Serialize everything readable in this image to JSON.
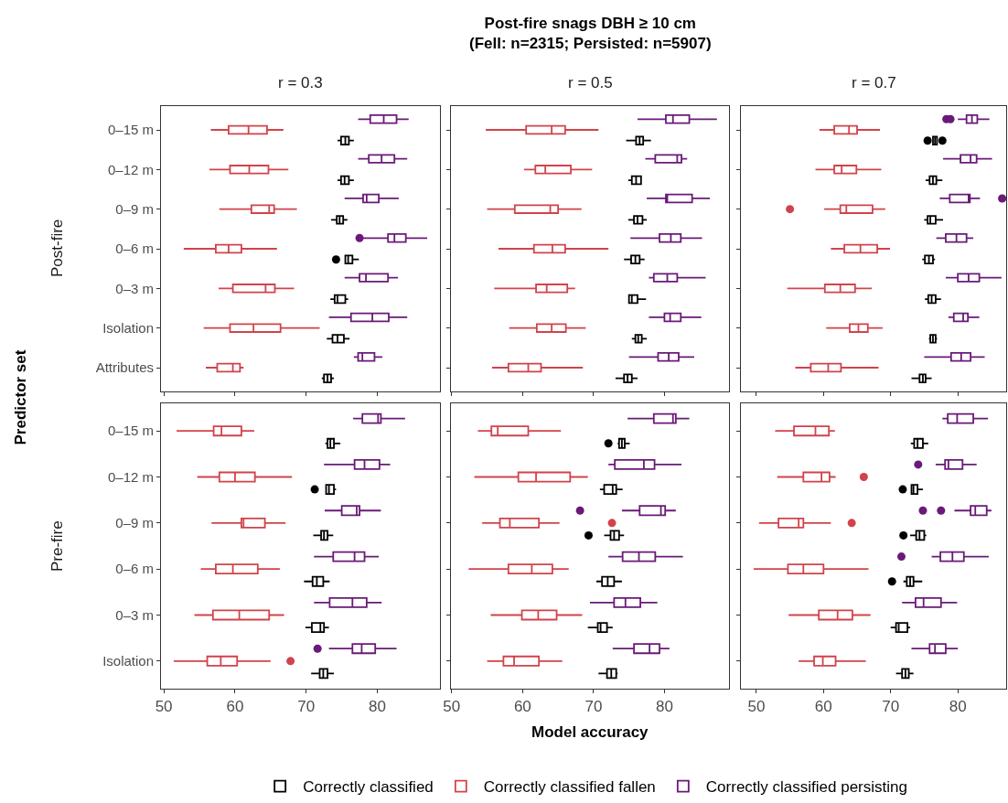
{
  "chart_data": [
    {
      "type": "box",
      "orientation": "horizontal",
      "subtitle": "r = 0.3",
      "ylabel": "Post-fire",
      "annotations": [
        "Predictor set"
      ],
      "legend": "bottom",
      "tick_labels": "y",
      "xlim": [
        49.6,
        88.8
      ],
      "xticks": [
        50,
        60,
        70,
        80
      ],
      "categories": [
        "0–15 m",
        "0–12 m",
        "0–9 m",
        "0–6 m",
        "0–3 m",
        "Isolation",
        "Attributes"
      ],
      "series": [
        {
          "name": "Correctly classified",
          "color": "#000000",
          "boxes": [
            {
              "low": 74.4,
              "q1": 74.9,
              "median": 75.5,
              "q3": 76.0,
              "high": 76.7
            },
            {
              "low": 74.4,
              "q1": 74.9,
              "median": 75.4,
              "q3": 76.0,
              "high": 76.7
            },
            {
              "low": 73.5,
              "q1": 74.3,
              "median": 74.7,
              "q3": 75.2,
              "high": 75.8
            },
            {
              "low": 75.5,
              "q1": 75.5,
              "median": 75.9,
              "q3": 76.5,
              "high": 77.4,
              "outliers": [
                74.2
              ]
            },
            {
              "low": 73.4,
              "q1": 74.0,
              "median": 74.4,
              "q3": 75.5,
              "high": 75.9
            },
            {
              "low": 72.9,
              "q1": 73.7,
              "median": 74.4,
              "q3": 75.3,
              "high": 76.1
            },
            {
              "low": 72.2,
              "q1": 72.5,
              "median": 73.0,
              "q3": 73.5,
              "high": 73.9
            }
          ]
        },
        {
          "name": "Correctly classified fallen",
          "color": "#d1434b",
          "boxes": [
            {
              "low": 56.6,
              "q1": 59.1,
              "median": 61.9,
              "q3": 64.5,
              "high": 66.8
            },
            {
              "low": 56.4,
              "q1": 59.3,
              "median": 62.0,
              "q3": 64.7,
              "high": 67.5
            },
            {
              "low": 57.8,
              "q1": 62.3,
              "median": 64.8,
              "q3": 65.5,
              "high": 68.7
            },
            {
              "low": 52.8,
              "q1": 57.3,
              "median": 59.1,
              "q3": 60.9,
              "high": 65.9
            },
            {
              "low": 57.7,
              "q1": 59.7,
              "median": 64.3,
              "q3": 65.6,
              "high": 68.3
            },
            {
              "low": 55.6,
              "q1": 59.3,
              "median": 62.6,
              "q3": 66.4,
              "high": 71.9
            },
            {
              "low": 55.9,
              "q1": 57.5,
              "median": 59.7,
              "q3": 60.7,
              "high": 61.2
            }
          ]
        },
        {
          "name": "Correctly classified persisting",
          "color": "#6a1a78",
          "boxes": [
            {
              "low": 77.3,
              "q1": 79.0,
              "median": 80.9,
              "q3": 82.7,
              "high": 84.4
            },
            {
              "low": 77.3,
              "q1": 78.8,
              "median": 80.6,
              "q3": 82.4,
              "high": 84.2
            },
            {
              "low": 75.4,
              "q1": 78.0,
              "median": 78.5,
              "q3": 80.2,
              "high": 83.0
            },
            {
              "low": 78.0,
              "q1": 81.5,
              "median": 82.4,
              "q3": 84.0,
              "high": 87.0,
              "outliers": [
                77.5
              ]
            },
            {
              "low": 75.4,
              "q1": 77.5,
              "median": 78.4,
              "q3": 81.5,
              "high": 82.9
            },
            {
              "low": 73.2,
              "q1": 76.3,
              "median": 79.3,
              "q3": 81.6,
              "high": 84.2
            },
            {
              "low": 76.7,
              "q1": 77.3,
              "median": 77.9,
              "q3": 79.6,
              "high": 80.7
            }
          ]
        }
      ]
    },
    {
      "type": "box",
      "orientation": "horizontal",
      "title": "Post-fire snags DBH ≥ 10 cm\n(Fell: n=2315; Persisted: n=5907)",
      "subtitle": "r = 0.5",
      "tick_labels": false,
      "xlim": [
        49.9,
        89.1
      ],
      "xticks": [
        50,
        60,
        70,
        80
      ],
      "categories": [
        null,
        null,
        null,
        null,
        null,
        null,
        null
      ],
      "series": [
        {
          "color": "#000000",
          "boxes": [
            {
              "low": 74.6,
              "q1": 76.0,
              "median": 76.5,
              "q3": 77.0,
              "high": 78.1
            },
            {
              "low": 74.9,
              "q1": 75.4,
              "median": 76.0,
              "q3": 76.7,
              "high": 76.7
            },
            {
              "low": 74.9,
              "q1": 75.7,
              "median": 76.2,
              "q3": 76.9,
              "high": 77.5
            },
            {
              "low": 74.3,
              "q1": 75.3,
              "median": 75.9,
              "q3": 76.5,
              "high": 77.2
            },
            {
              "low": 75.0,
              "q1": 75.0,
              "median": 75.4,
              "q3": 76.2,
              "high": 77.4
            },
            {
              "low": 75.4,
              "q1": 75.9,
              "median": 76.3,
              "q3": 76.8,
              "high": 77.5
            },
            {
              "low": 73.1,
              "q1": 74.3,
              "median": 74.8,
              "q3": 75.4,
              "high": 76.2
            }
          ]
        },
        {
          "color": "#d1434b",
          "boxes": [
            {
              "low": 54.8,
              "q1": 60.5,
              "median": 64.1,
              "q3": 66.0,
              "high": 70.7
            },
            {
              "low": 60.2,
              "q1": 61.8,
              "median": 63.2,
              "q3": 66.8,
              "high": 69.8
            },
            {
              "low": 55.0,
              "q1": 58.9,
              "median": 63.9,
              "q3": 65.0,
              "high": 68.3
            },
            {
              "low": 56.6,
              "q1": 61.6,
              "median": 64.2,
              "q3": 66.0,
              "high": 72.1
            },
            {
              "low": 56.0,
              "q1": 61.9,
              "median": 63.4,
              "q3": 66.3,
              "high": 67.4
            },
            {
              "low": 58.1,
              "q1": 62.0,
              "median": 64.1,
              "q3": 66.1,
              "high": 68.9
            },
            {
              "low": 55.7,
              "q1": 58.0,
              "median": 60.8,
              "q3": 62.6,
              "high": 68.5
            }
          ]
        },
        {
          "color": "#6a1a78",
          "boxes": [
            {
              "low": 76.2,
              "q1": 80.2,
              "median": 81.2,
              "q3": 83.5,
              "high": 87.4
            },
            {
              "low": 77.3,
              "q1": 78.7,
              "median": 81.8,
              "q3": 82.4,
              "high": 83.2
            },
            {
              "low": 77.5,
              "q1": 80.2,
              "median": 80.4,
              "q3": 83.9,
              "high": 86.4
            },
            {
              "low": 75.2,
              "q1": 79.3,
              "median": 80.9,
              "q3": 82.3,
              "high": 85.3
            },
            {
              "low": 77.8,
              "q1": 78.5,
              "median": 80.4,
              "q3": 81.8,
              "high": 85.8
            },
            {
              "low": 77.8,
              "q1": 80.0,
              "median": 80.8,
              "q3": 82.3,
              "high": 85.2
            },
            {
              "low": 75.0,
              "q1": 79.1,
              "median": 80.6,
              "q3": 82.0,
              "high": 84.2
            }
          ]
        }
      ]
    },
    {
      "type": "box",
      "orientation": "horizontal",
      "subtitle": "r = 0.7",
      "tick_labels": false,
      "xlim": [
        47.7,
        87.2
      ],
      "xticks": [
        50,
        60,
        70,
        80
      ],
      "categories": [
        null,
        null,
        null,
        null,
        null,
        null,
        null
      ],
      "series": [
        {
          "color": "#000000",
          "boxes": [
            {
              "low": 76.3,
              "q1": 76.3,
              "median": 76.6,
              "q3": 76.9,
              "high": 76.9,
              "outliers": [
                75.5,
                77.7
              ]
            },
            {
              "low": 75.2,
              "q1": 75.8,
              "median": 76.3,
              "q3": 76.8,
              "high": 77.7
            },
            {
              "low": 75.0,
              "q1": 75.5,
              "median": 75.9,
              "q3": 76.7,
              "high": 77.8
            },
            {
              "low": 74.7,
              "q1": 75.1,
              "median": 75.7,
              "q3": 76.3,
              "high": 76.6
            },
            {
              "low": 75.1,
              "q1": 75.6,
              "median": 76.1,
              "q3": 76.7,
              "high": 77.5
            },
            {
              "low": 75.7,
              "q1": 75.9,
              "median": 76.3,
              "q3": 76.7,
              "high": 76.9
            },
            {
              "low": 73.1,
              "q1": 74.3,
              "median": 74.8,
              "q3": 75.2,
              "high": 76.1
            }
          ]
        },
        {
          "color": "#d1434b",
          "boxes": [
            {
              "low": 59.4,
              "q1": 61.6,
              "median": 63.8,
              "q3": 65.0,
              "high": 68.4
            },
            {
              "low": 58.8,
              "q1": 61.6,
              "median": 62.7,
              "q3": 64.9,
              "high": 68.6
            },
            {
              "low": 60.1,
              "q1": 62.5,
              "median": 63.4,
              "q3": 67.3,
              "high": 69.2,
              "outliers": [
                55.0
              ]
            },
            {
              "low": 61.1,
              "q1": 63.1,
              "median": 65.5,
              "q3": 68.0,
              "high": 69.9
            },
            {
              "low": 54.6,
              "q1": 60.2,
              "median": 62.5,
              "q3": 64.7,
              "high": 67.2
            },
            {
              "low": 60.4,
              "q1": 63.9,
              "median": 65.2,
              "q3": 66.6,
              "high": 68.8
            },
            {
              "low": 55.8,
              "q1": 58.1,
              "median": 60.7,
              "q3": 62.6,
              "high": 68.2
            }
          ]
        },
        {
          "color": "#6a1a78",
          "boxes": [
            {
              "low": 80.0,
              "q1": 81.3,
              "median": 82.1,
              "q3": 82.9,
              "high": 84.7,
              "outliers": [
                78.3,
                78.9
              ]
            },
            {
              "low": 77.8,
              "q1": 80.4,
              "median": 81.9,
              "q3": 82.8,
              "high": 85.1
            },
            {
              "low": 77.3,
              "q1": 78.8,
              "median": 81.6,
              "q3": 81.8,
              "high": 83.3,
              "outliers": [
                86.6
              ]
            },
            {
              "low": 76.8,
              "q1": 78.2,
              "median": 79.8,
              "q3": 81.3,
              "high": 82.3
            },
            {
              "low": 78.2,
              "q1": 80.0,
              "median": 81.6,
              "q3": 83.2,
              "high": 86.5
            },
            {
              "low": 78.6,
              "q1": 79.4,
              "median": 80.8,
              "q3": 81.5,
              "high": 83.2
            },
            {
              "low": 75.0,
              "q1": 79.0,
              "median": 80.5,
              "q3": 81.9,
              "high": 84.0
            }
          ]
        }
      ]
    },
    {
      "type": "box",
      "orientation": "horizontal",
      "ylabel": "Pre-fire",
      "xlim": [
        49.6,
        88.8
      ],
      "xticks": [
        50,
        60,
        70,
        80
      ],
      "categories": [
        "0–15 m",
        "0–12 m",
        "0–9 m",
        "0–6 m",
        "0–3 m",
        "Isolation"
      ],
      "series": [
        {
          "color": "#000000",
          "boxes": [
            {
              "low": 72.7,
              "q1": 73.0,
              "median": 73.4,
              "q3": 73.9,
              "high": 74.8
            },
            {
              "low": 72.7,
              "q1": 72.8,
              "median": 73.2,
              "q3": 73.9,
              "high": 74.2,
              "outliers": [
                71.2
              ]
            },
            {
              "low": 71.0,
              "q1": 72.1,
              "median": 72.5,
              "q3": 73.0,
              "high": 73.8
            },
            {
              "low": 69.7,
              "q1": 70.9,
              "median": 71.5,
              "q3": 72.4,
              "high": 73.3
            },
            {
              "low": 69.9,
              "q1": 70.8,
              "median": 72.0,
              "q3": 72.5,
              "high": 73.2
            },
            {
              "low": 70.7,
              "q1": 71.9,
              "median": 72.4,
              "q3": 73.0,
              "high": 73.9
            }
          ]
        },
        {
          "color": "#d1434b",
          "boxes": [
            {
              "low": 51.8,
              "q1": 57.0,
              "median": 58.1,
              "q3": 60.9,
              "high": 62.7
            },
            {
              "low": 54.7,
              "q1": 57.8,
              "median": 60.0,
              "q3": 62.8,
              "high": 68.0
            },
            {
              "low": 56.7,
              "q1": 60.9,
              "median": 61.2,
              "q3": 64.2,
              "high": 67.1
            },
            {
              "low": 55.2,
              "q1": 57.3,
              "median": 59.7,
              "q3": 63.2,
              "high": 66.3
            },
            {
              "low": 54.3,
              "q1": 56.9,
              "median": 60.6,
              "q3": 64.8,
              "high": 66.9
            },
            {
              "low": 51.4,
              "q1": 56.1,
              "median": 58.0,
              "q3": 60.3,
              "high": 65.0,
              "outliers": [
                67.8
              ]
            }
          ]
        },
        {
          "color": "#6a1a78",
          "boxes": [
            {
              "low": 76.6,
              "q1": 77.9,
              "median": 80.1,
              "q3": 80.5,
              "high": 83.9
            },
            {
              "low": 72.5,
              "q1": 76.8,
              "median": 78.2,
              "q3": 80.3,
              "high": 81.8
            },
            {
              "low": 72.6,
              "q1": 75.0,
              "median": 77.1,
              "q3": 77.5,
              "high": 80.5
            },
            {
              "low": 71.1,
              "q1": 73.8,
              "median": 76.8,
              "q3": 78.2,
              "high": 80.2
            },
            {
              "low": 71.1,
              "q1": 73.3,
              "median": 76.5,
              "q3": 78.5,
              "high": 80.6
            },
            {
              "low": 73.2,
              "q1": 76.5,
              "median": 77.8,
              "q3": 79.7,
              "high": 82.7,
              "outliers": [
                71.6
              ]
            }
          ]
        }
      ]
    },
    {
      "type": "box",
      "orientation": "horizontal",
      "xlabel": "Model accuracy",
      "tick_labels": "x",
      "xlim": [
        49.9,
        89.1
      ],
      "xticks": [
        50,
        60,
        70,
        80
      ],
      "categories": [
        null,
        null,
        null,
        null,
        null,
        null
      ],
      "series": [
        {
          "color": "#000000",
          "boxes": [
            {
              "low": 73.4,
              "q1": 73.6,
              "median": 74.0,
              "q3": 74.4,
              "high": 75.1,
              "outliers": [
                72.1
              ]
            },
            {
              "low": 70.9,
              "q1": 71.5,
              "median": 72.7,
              "q3": 73.2,
              "high": 74.1
            },
            {
              "low": 71.5,
              "q1": 72.4,
              "median": 72.9,
              "q3": 73.6,
              "high": 74.3,
              "outliers": [
                69.3
              ]
            },
            {
              "low": 70.4,
              "q1": 71.2,
              "median": 72.0,
              "q3": 72.9,
              "high": 74.0
            },
            {
              "low": 69.2,
              "q1": 70.6,
              "median": 71.0,
              "q3": 71.9,
              "high": 72.7
            },
            {
              "low": 70.7,
              "q1": 71.9,
              "median": 72.5,
              "q3": 73.2,
              "high": 73.4
            }
          ]
        },
        {
          "color": "#d1434b",
          "boxes": [
            {
              "low": 53.7,
              "q1": 55.6,
              "median": 56.5,
              "q3": 60.8,
              "high": 65.4
            },
            {
              "low": 53.2,
              "q1": 59.4,
              "median": 61.9,
              "q3": 66.7,
              "high": 69.2
            },
            {
              "low": 54.3,
              "q1": 56.8,
              "median": 58.2,
              "q3": 62.3,
              "high": 65.2,
              "outliers": [
                72.6
              ]
            },
            {
              "low": 52.4,
              "q1": 58.0,
              "median": 61.3,
              "q3": 64.2,
              "high": 66.5
            },
            {
              "low": 55.5,
              "q1": 59.9,
              "median": 62.2,
              "q3": 64.8,
              "high": 68.4
            },
            {
              "low": 55.0,
              "q1": 57.3,
              "median": 58.8,
              "q3": 62.3,
              "high": 65.6
            }
          ]
        },
        {
          "color": "#6a1a78",
          "boxes": [
            {
              "low": 74.8,
              "q1": 78.5,
              "median": 81.2,
              "q3": 81.6,
              "high": 83.5
            },
            {
              "low": 72.1,
              "q1": 73.0,
              "median": 77.1,
              "q3": 78.6,
              "high": 82.4
            },
            {
              "low": 74.0,
              "q1": 76.5,
              "median": 79.5,
              "q3": 80.1,
              "high": 81.6,
              "outliers": [
                68.1
              ]
            },
            {
              "low": 72.1,
              "q1": 74.1,
              "median": 76.4,
              "q3": 78.7,
              "high": 82.6
            },
            {
              "low": 69.5,
              "q1": 72.9,
              "median": 74.5,
              "q3": 76.6,
              "high": 79.0
            },
            {
              "low": 72.7,
              "q1": 75.7,
              "median": 77.9,
              "q3": 79.3,
              "high": 80.7
            }
          ]
        }
      ]
    },
    {
      "type": "box",
      "orientation": "horizontal",
      "tick_labels": "x",
      "xlim": [
        47.7,
        87.2
      ],
      "xticks": [
        50,
        60,
        70,
        80
      ],
      "categories": [
        null,
        null,
        null,
        null,
        null,
        null
      ],
      "series": [
        {
          "color": "#000000",
          "boxes": [
            {
              "low": 73.0,
              "q1": 73.5,
              "median": 74.0,
              "q3": 74.8,
              "high": 75.6
            },
            {
              "low": 73.1,
              "q1": 73.1,
              "median": 73.4,
              "q3": 74.0,
              "high": 74.8,
              "outliers": [
                71.8
              ]
            },
            {
              "low": 72.9,
              "q1": 73.8,
              "median": 74.3,
              "q3": 75.0,
              "high": 75.3,
              "outliers": [
                71.9
              ]
            },
            {
              "low": 71.9,
              "q1": 72.4,
              "median": 72.9,
              "q3": 73.4,
              "high": 74.7,
              "outliers": [
                70.2
              ]
            },
            {
              "low": 70.0,
              "q1": 70.8,
              "median": 71.2,
              "q3": 72.5,
              "high": 72.9
            },
            {
              "low": 70.8,
              "q1": 71.7,
              "median": 72.2,
              "q3": 72.7,
              "high": 73.4
            }
          ]
        },
        {
          "color": "#d1434b",
          "boxes": [
            {
              "low": 52.8,
              "q1": 55.6,
              "median": 58.8,
              "q3": 60.8,
              "high": 61.7
            },
            {
              "low": 53.1,
              "q1": 57.0,
              "median": 59.7,
              "q3": 60.9,
              "high": 61.8,
              "outliers": [
                66.0
              ]
            },
            {
              "low": 50.4,
              "q1": 53.3,
              "median": 56.3,
              "q3": 57.0,
              "high": 61.1,
              "outliers": [
                64.2
              ]
            },
            {
              "low": 49.6,
              "q1": 54.7,
              "median": 57.0,
              "q3": 60.0,
              "high": 66.7
            },
            {
              "low": 54.8,
              "q1": 59.3,
              "median": 62.1,
              "q3": 64.3,
              "high": 67.0
            },
            {
              "low": 56.3,
              "q1": 58.6,
              "median": 59.9,
              "q3": 61.8,
              "high": 66.3
            }
          ]
        },
        {
          "color": "#6a1a78",
          "boxes": [
            {
              "low": 77.7,
              "q1": 78.5,
              "median": 79.9,
              "q3": 82.3,
              "high": 84.5
            },
            {
              "low": 76.7,
              "q1": 78.1,
              "median": 78.6,
              "q3": 80.7,
              "high": 82.8,
              "outliers": [
                74.1
              ]
            },
            {
              "low": 79.5,
              "q1": 81.9,
              "median": 82.6,
              "q3": 84.3,
              "high": 85.0,
              "outliers": [
                74.8,
                77.5
              ]
            },
            {
              "low": 76.1,
              "q1": 77.4,
              "median": 79.2,
              "q3": 80.9,
              "high": 84.6,
              "outliers": [
                71.6
              ]
            },
            {
              "low": 71.7,
              "q1": 73.7,
              "median": 74.9,
              "q3": 77.5,
              "high": 79.9
            },
            {
              "low": 73.1,
              "q1": 75.8,
              "median": 76.6,
              "q3": 78.2,
              "high": 80.0
            }
          ]
        }
      ]
    }
  ]
}
